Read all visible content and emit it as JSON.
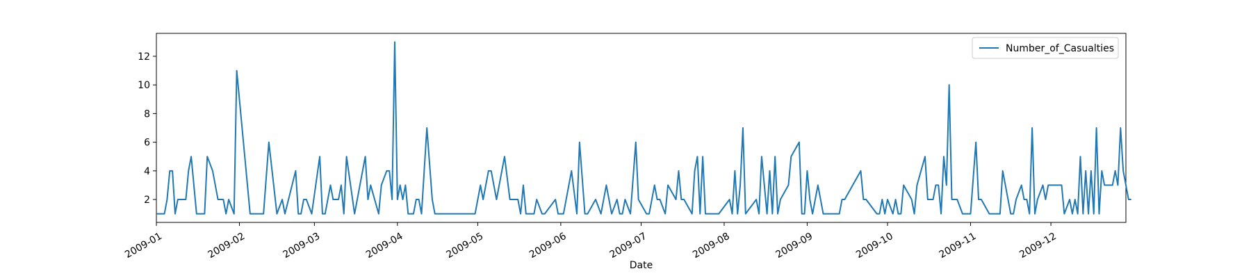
{
  "chart_data": {
    "type": "line",
    "title": "",
    "xlabel": "Date",
    "ylabel": "",
    "xlim": [
      "2009-01-01",
      "2009-12-29"
    ],
    "ylim": [
      0.4,
      13.6
    ],
    "yticks": [
      2,
      4,
      6,
      8,
      10,
      12
    ],
    "xticks": [
      "2009-01",
      "2009-02",
      "2009-03",
      "2009-04",
      "2009-05",
      "2009-06",
      "2009-07",
      "2009-08",
      "2009-09",
      "2009-10",
      "2009-11",
      "2009-12"
    ],
    "grid": false,
    "legend_position": "top-right",
    "series_color": "#1f77b4",
    "series": [
      {
        "name": "Number_of_Casualties",
        "points": [
          [
            "2009-01-01",
            1
          ],
          [
            "2009-01-03",
            1
          ],
          [
            "2009-01-04",
            1
          ],
          [
            "2009-01-05",
            2
          ],
          [
            "2009-01-06",
            4
          ],
          [
            "2009-01-07",
            4
          ],
          [
            "2009-01-08",
            1
          ],
          [
            "2009-01-09",
            2
          ],
          [
            "2009-01-10",
            2
          ],
          [
            "2009-01-11",
            2
          ],
          [
            "2009-01-12",
            2
          ],
          [
            "2009-01-13",
            4
          ],
          [
            "2009-01-14",
            5
          ],
          [
            "2009-01-16",
            1
          ],
          [
            "2009-01-17",
            1
          ],
          [
            "2009-01-18",
            1
          ],
          [
            "2009-01-19",
            1
          ],
          [
            "2009-01-20",
            5
          ],
          [
            "2009-01-22",
            4
          ],
          [
            "2009-01-24",
            2
          ],
          [
            "2009-01-25",
            2
          ],
          [
            "2009-01-26",
            2
          ],
          [
            "2009-01-27",
            1
          ],
          [
            "2009-01-28",
            2
          ],
          [
            "2009-01-30",
            1
          ],
          [
            "2009-01-31",
            11
          ],
          [
            "2009-02-05",
            1
          ],
          [
            "2009-02-10",
            1
          ],
          [
            "2009-02-12",
            6
          ],
          [
            "2009-02-15",
            1
          ],
          [
            "2009-02-17",
            2
          ],
          [
            "2009-02-18",
            1
          ],
          [
            "2009-02-22",
            4
          ],
          [
            "2009-02-23",
            1
          ],
          [
            "2009-02-24",
            1
          ],
          [
            "2009-02-25",
            2
          ],
          [
            "2009-02-26",
            2
          ],
          [
            "2009-02-28",
            1
          ],
          [
            "2009-03-03",
            5
          ],
          [
            "2009-03-04",
            1
          ],
          [
            "2009-03-05",
            1
          ],
          [
            "2009-03-07",
            3
          ],
          [
            "2009-03-08",
            2
          ],
          [
            "2009-03-09",
            2
          ],
          [
            "2009-03-10",
            2
          ],
          [
            "2009-03-11",
            3
          ],
          [
            "2009-03-12",
            1
          ],
          [
            "2009-03-13",
            5
          ],
          [
            "2009-03-16",
            1
          ],
          [
            "2009-03-18",
            3
          ],
          [
            "2009-03-20",
            5
          ],
          [
            "2009-03-21",
            2
          ],
          [
            "2009-03-22",
            3
          ],
          [
            "2009-03-25",
            1
          ],
          [
            "2009-03-26",
            3
          ],
          [
            "2009-03-28",
            4
          ],
          [
            "2009-03-29",
            4
          ],
          [
            "2009-03-30",
            2
          ],
          [
            "2009-03-31",
            13
          ],
          [
            "2009-04-01",
            2
          ],
          [
            "2009-04-02",
            3
          ],
          [
            "2009-04-03",
            2
          ],
          [
            "2009-04-04",
            3
          ],
          [
            "2009-04-05",
            1
          ],
          [
            "2009-04-07",
            1
          ],
          [
            "2009-04-08",
            2
          ],
          [
            "2009-04-09",
            2
          ],
          [
            "2009-04-10",
            1
          ],
          [
            "2009-04-12",
            7
          ],
          [
            "2009-04-14",
            2
          ],
          [
            "2009-04-15",
            1
          ],
          [
            "2009-04-30",
            1
          ],
          [
            "2009-05-02",
            3
          ],
          [
            "2009-05-03",
            2
          ],
          [
            "2009-05-05",
            4
          ],
          [
            "2009-05-06",
            4
          ],
          [
            "2009-05-08",
            2
          ],
          [
            "2009-05-11",
            5
          ],
          [
            "2009-05-13",
            2
          ],
          [
            "2009-05-16",
            2
          ],
          [
            "2009-05-17",
            1
          ],
          [
            "2009-05-18",
            3
          ],
          [
            "2009-05-19",
            1
          ],
          [
            "2009-05-22",
            1
          ],
          [
            "2009-05-23",
            2
          ],
          [
            "2009-05-25",
            1
          ],
          [
            "2009-05-26",
            1
          ],
          [
            "2009-05-30",
            2
          ],
          [
            "2009-05-31",
            1
          ],
          [
            "2009-06-02",
            1
          ],
          [
            "2009-06-05",
            4
          ],
          [
            "2009-06-07",
            1
          ],
          [
            "2009-06-08",
            6
          ],
          [
            "2009-06-10",
            1
          ],
          [
            "2009-06-11",
            1
          ],
          [
            "2009-06-14",
            2
          ],
          [
            "2009-06-16",
            1
          ],
          [
            "2009-06-18",
            3
          ],
          [
            "2009-06-20",
            1
          ],
          [
            "2009-06-22",
            2
          ],
          [
            "2009-06-23",
            1
          ],
          [
            "2009-06-24",
            1
          ],
          [
            "2009-06-25",
            2
          ],
          [
            "2009-06-27",
            1
          ],
          [
            "2009-06-29",
            6
          ],
          [
            "2009-06-30",
            2
          ],
          [
            "2009-07-03",
            1
          ],
          [
            "2009-07-04",
            1
          ],
          [
            "2009-07-06",
            3
          ],
          [
            "2009-07-07",
            2
          ],
          [
            "2009-07-08",
            2
          ],
          [
            "2009-07-10",
            1
          ],
          [
            "2009-07-11",
            3
          ],
          [
            "2009-07-14",
            2
          ],
          [
            "2009-07-15",
            4
          ],
          [
            "2009-07-16",
            2
          ],
          [
            "2009-07-17",
            2
          ],
          [
            "2009-07-20",
            1
          ],
          [
            "2009-07-21",
            4
          ],
          [
            "2009-07-22",
            5
          ],
          [
            "2009-07-23",
            1
          ],
          [
            "2009-07-24",
            5
          ],
          [
            "2009-07-25",
            1
          ],
          [
            "2009-07-30",
            1
          ],
          [
            "2009-08-03",
            2
          ],
          [
            "2009-08-04",
            1
          ],
          [
            "2009-08-05",
            4
          ],
          [
            "2009-08-06",
            1
          ],
          [
            "2009-08-07",
            3
          ],
          [
            "2009-08-08",
            7
          ],
          [
            "2009-08-09",
            1
          ],
          [
            "2009-08-13",
            2
          ],
          [
            "2009-08-14",
            1
          ],
          [
            "2009-08-15",
            5
          ],
          [
            "2009-08-17",
            1
          ],
          [
            "2009-08-18",
            4
          ],
          [
            "2009-08-19",
            1
          ],
          [
            "2009-08-20",
            5
          ],
          [
            "2009-08-21",
            1
          ],
          [
            "2009-08-22",
            2
          ],
          [
            "2009-08-25",
            3
          ],
          [
            "2009-08-26",
            5
          ],
          [
            "2009-08-29",
            6
          ],
          [
            "2009-08-30",
            1
          ],
          [
            "2009-08-31",
            1
          ],
          [
            "2009-09-01",
            4
          ],
          [
            "2009-09-02",
            2
          ],
          [
            "2009-09-03",
            1
          ],
          [
            "2009-09-05",
            3
          ],
          [
            "2009-09-07",
            1
          ],
          [
            "2009-09-13",
            1
          ],
          [
            "2009-09-14",
            2
          ],
          [
            "2009-09-15",
            2
          ],
          [
            "2009-09-21",
            4
          ],
          [
            "2009-09-22",
            2
          ],
          [
            "2009-09-23",
            2
          ],
          [
            "2009-09-27",
            1
          ],
          [
            "2009-09-28",
            1
          ],
          [
            "2009-09-29",
            2
          ],
          [
            "2009-09-30",
            1
          ],
          [
            "2009-10-01",
            2
          ],
          [
            "2009-10-03",
            1
          ],
          [
            "2009-10-04",
            2
          ],
          [
            "2009-10-05",
            1
          ],
          [
            "2009-10-06",
            1
          ],
          [
            "2009-10-07",
            3
          ],
          [
            "2009-10-10",
            2
          ],
          [
            "2009-10-11",
            1
          ],
          [
            "2009-10-12",
            3
          ],
          [
            "2009-10-15",
            5
          ],
          [
            "2009-10-16",
            2
          ],
          [
            "2009-10-17",
            2
          ],
          [
            "2009-10-18",
            2
          ],
          [
            "2009-10-19",
            3
          ],
          [
            "2009-10-20",
            3
          ],
          [
            "2009-10-21",
            1
          ],
          [
            "2009-10-22",
            5
          ],
          [
            "2009-10-23",
            3
          ],
          [
            "2009-10-24",
            10
          ],
          [
            "2009-10-25",
            2
          ],
          [
            "2009-10-26",
            2
          ],
          [
            "2009-10-27",
            2
          ],
          [
            "2009-10-29",
            1
          ],
          [
            "2009-10-31",
            1
          ],
          [
            "2009-11-01",
            1
          ],
          [
            "2009-11-03",
            6
          ],
          [
            "2009-11-04",
            2
          ],
          [
            "2009-11-05",
            2
          ],
          [
            "2009-11-08",
            1
          ],
          [
            "2009-11-11",
            1
          ],
          [
            "2009-11-12",
            1
          ],
          [
            "2009-11-13",
            4
          ],
          [
            "2009-11-16",
            1
          ],
          [
            "2009-11-17",
            1
          ],
          [
            "2009-11-18",
            2
          ],
          [
            "2009-11-20",
            3
          ],
          [
            "2009-11-21",
            2
          ],
          [
            "2009-11-22",
            2
          ],
          [
            "2009-11-23",
            1
          ],
          [
            "2009-11-24",
            7
          ],
          [
            "2009-11-25",
            1
          ],
          [
            "2009-11-26",
            2
          ],
          [
            "2009-11-28",
            3
          ],
          [
            "2009-11-29",
            2
          ],
          [
            "2009-11-30",
            3
          ],
          [
            "2009-12-01",
            3
          ],
          [
            "2009-12-02",
            3
          ],
          [
            "2009-12-03",
            3
          ],
          [
            "2009-12-04",
            3
          ],
          [
            "2009-12-05",
            3
          ],
          [
            "2009-12-06",
            1
          ],
          [
            "2009-12-08",
            2
          ],
          [
            "2009-12-09",
            1
          ],
          [
            "2009-12-10",
            2
          ],
          [
            "2009-12-11",
            1
          ],
          [
            "2009-12-12",
            5
          ],
          [
            "2009-12-13",
            1
          ],
          [
            "2009-12-14",
            4
          ],
          [
            "2009-12-15",
            1
          ],
          [
            "2009-12-16",
            4
          ],
          [
            "2009-12-17",
            1
          ],
          [
            "2009-12-18",
            7
          ],
          [
            "2009-12-19",
            1
          ],
          [
            "2009-12-20",
            4
          ],
          [
            "2009-12-21",
            3
          ],
          [
            "2009-12-22",
            3
          ],
          [
            "2009-12-23",
            3
          ],
          [
            "2009-12-24",
            3
          ],
          [
            "2009-12-25",
            4
          ],
          [
            "2009-12-26",
            3
          ],
          [
            "2009-12-27",
            7
          ],
          [
            "2009-12-28",
            4
          ],
          [
            "2009-12-29",
            3
          ],
          [
            "2009-12-30",
            2
          ],
          [
            "2009-12-31",
            2
          ]
        ]
      }
    ]
  }
}
